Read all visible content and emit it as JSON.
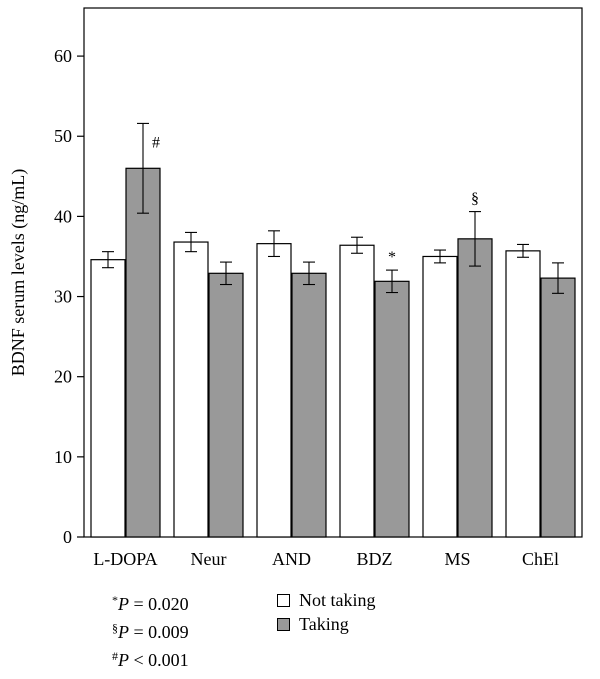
{
  "chart_data": {
    "type": "bar",
    "title": "",
    "xlabel": "",
    "ylabel": "BDNF serum levels (ng/mL)",
    "ylim": [
      0,
      66
    ],
    "yticks": [
      0,
      10,
      20,
      30,
      40,
      50,
      60
    ],
    "grid": false,
    "categories": [
      "L-DOPA",
      "Neur",
      "AND",
      "BDZ",
      "MS",
      "ChEl"
    ],
    "series": [
      {
        "name": "Not taking",
        "color": "#ffffff",
        "values": [
          34.6,
          36.8,
          36.6,
          36.4,
          35.0,
          35.7
        ],
        "error": [
          1.0,
          1.2,
          1.6,
          1.0,
          0.8,
          0.8
        ]
      },
      {
        "name": "Taking",
        "color": "#999999",
        "values": [
          46.0,
          32.9,
          32.9,
          31.9,
          37.2,
          32.3
        ],
        "error": [
          5.6,
          1.4,
          1.4,
          1.4,
          3.4,
          1.9
        ]
      }
    ],
    "annotations": [
      {
        "category": "L-DOPA",
        "series": "Taking",
        "text": "#"
      },
      {
        "category": "BDZ",
        "series": "Taking",
        "text": "*"
      },
      {
        "category": "MS",
        "series": "Taking",
        "text": "§"
      }
    ]
  },
  "footnotes": [
    {
      "sym": "*",
      "var": "P",
      "op": " = 0.020"
    },
    {
      "sym": "§",
      "var": "P",
      "op": " = 0.009"
    },
    {
      "sym": "#",
      "var": "P",
      "op": " < 0.001"
    }
  ],
  "legend": [
    {
      "label": "Not taking",
      "color": "#ffffff"
    },
    {
      "label": "Taking",
      "color": "#999999"
    }
  ]
}
